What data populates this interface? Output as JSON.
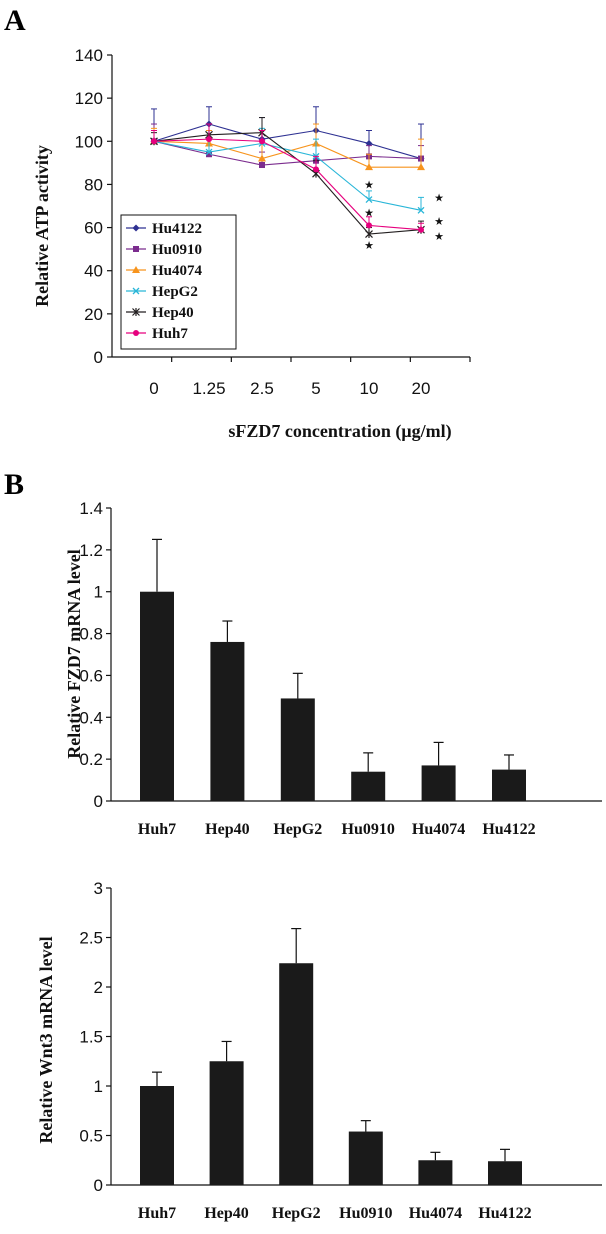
{
  "panels": {
    "a": "A",
    "b": "B"
  },
  "chart_data": [
    {
      "type": "line",
      "xlabel": "sFZD7 concentration (μg/ml)",
      "ylabel": "Relative ATP activity",
      "categories": [
        "0",
        "1.25",
        "2.5",
        "5",
        "10",
        "20"
      ],
      "ylim": [
        0,
        140
      ],
      "yticks": [
        "0",
        "20",
        "40",
        "60",
        "80",
        "100",
        "120",
        "140"
      ],
      "grid": false,
      "legend_position": "bottom-left",
      "series": [
        {
          "name": "Hu4122",
          "color": "#2e3192",
          "marker": "diamond",
          "values": [
            100,
            108,
            101,
            105,
            99,
            92
          ],
          "errors": [
            15,
            8,
            10,
            11,
            6,
            16
          ]
        },
        {
          "name": "Hu0910",
          "color": "#7b2c8e",
          "marker": "square",
          "values": [
            100,
            94,
            89,
            91,
            93,
            92
          ],
          "errors": [
            8,
            4,
            6,
            7,
            5,
            6
          ]
        },
        {
          "name": "Hu4074",
          "color": "#f7941d",
          "marker": "triangle",
          "values": [
            100,
            99,
            92,
            99,
            88,
            88
          ],
          "errors": [
            6,
            6,
            8,
            9,
            6,
            13
          ]
        },
        {
          "name": "HepG2",
          "color": "#29b6d8",
          "marker": "x",
          "values": [
            100,
            95,
            99,
            93,
            73,
            68
          ],
          "errors": [
            5,
            6,
            7,
            8,
            4,
            6
          ]
        },
        {
          "name": "Hep40",
          "color": "#231f20",
          "marker": "star",
          "values": [
            100,
            103,
            104,
            85,
            57,
            59
          ],
          "errors": [
            4,
            5,
            7,
            6,
            3,
            4
          ]
        },
        {
          "name": "Huh7",
          "color": "#e6007e",
          "marker": "circle",
          "values": [
            100,
            101,
            100,
            87,
            61,
            59
          ],
          "errors": [
            5,
            7,
            5,
            6,
            4,
            3
          ]
        }
      ],
      "significance": [
        {
          "x": "10",
          "y": 80
        },
        {
          "x": "10",
          "y": 67
        },
        {
          "x": "10",
          "y": 52
        },
        {
          "x": "20",
          "y": 74
        },
        {
          "x": "20",
          "y": 63
        },
        {
          "x": "20",
          "y": 56
        }
      ]
    },
    {
      "type": "bar",
      "ylabel": "Relative FZD7 mRNA level",
      "categories": [
        "Huh7",
        "Hep40",
        "HepG2",
        "Hu0910",
        "Hu4074",
        "Hu4122"
      ],
      "values": [
        1.0,
        0.76,
        0.49,
        0.14,
        0.17,
        0.15
      ],
      "errors": [
        0.25,
        0.1,
        0.12,
        0.09,
        0.11,
        0.07
      ],
      "ylim": [
        0,
        1.4
      ],
      "yticks": [
        "0",
        "0.2",
        "0.4",
        "0.6",
        "0.8",
        "1",
        "1.2",
        "1.4"
      ],
      "grid": false,
      "bar_color": "#1a1a1a"
    },
    {
      "type": "bar",
      "ylabel": "Relative Wnt3 mRNA level",
      "categories": [
        "Huh7",
        "Hep40",
        "HepG2",
        "Hu0910",
        "Hu4074",
        "Hu4122"
      ],
      "values": [
        1.0,
        1.25,
        2.24,
        0.54,
        0.25,
        0.24
      ],
      "errors": [
        0.14,
        0.2,
        0.35,
        0.11,
        0.08,
        0.12
      ],
      "ylim": [
        0,
        3
      ],
      "yticks": [
        "0",
        "0.5",
        "1",
        "1.5",
        "2",
        "2.5",
        "3"
      ],
      "grid": false,
      "bar_color": "#1a1a1a"
    }
  ]
}
